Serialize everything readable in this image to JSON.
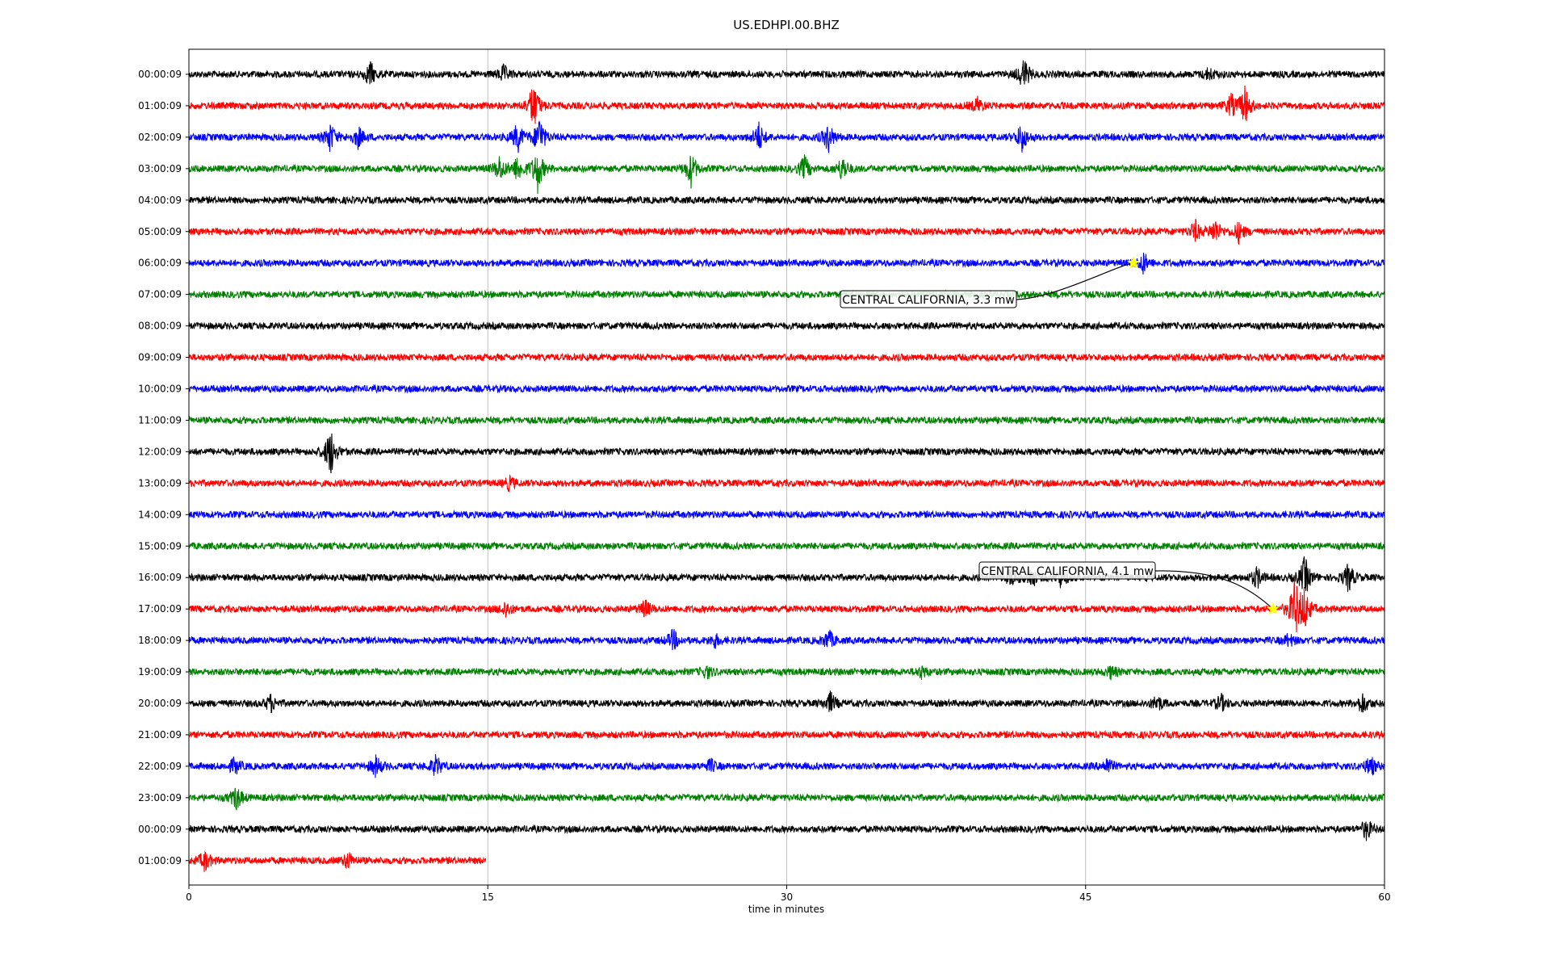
{
  "chart_data": {
    "type": "line",
    "title": "US.EDHPI.00.BHZ",
    "xlabel": "time in minutes",
    "xlim": [
      0,
      60
    ],
    "x_ticks": [
      0,
      15,
      30,
      45,
      60
    ],
    "grid_x": true,
    "trace_colors": [
      "#000000",
      "#ff0000",
      "#0000ff",
      "#008000"
    ],
    "rows": [
      "00:00:09",
      "01:00:09",
      "02:00:09",
      "03:00:09",
      "04:00:09",
      "05:00:09",
      "06:00:09",
      "07:00:09",
      "08:00:09",
      "09:00:09",
      "10:00:09",
      "11:00:09",
      "12:00:09",
      "13:00:09",
      "14:00:09",
      "15:00:09",
      "16:00:09",
      "17:00:09",
      "18:00:09",
      "19:00:09",
      "20:00:09",
      "21:00:09",
      "22:00:09",
      "23:00:09",
      "00:00:09",
      "01:00:09"
    ],
    "last_row_end_minute": 14.9,
    "events": [
      {
        "row": 6,
        "minute": 47.4,
        "label": "CENTRAL CALIFORNIA, 3.3 mw",
        "marker_color": "#ffff00"
      },
      {
        "row": 17,
        "minute": 54.4,
        "label": "CENTRAL CALIFORNIA, 4.1 mw",
        "marker_color": "#ffff00"
      }
    ],
    "bursts": [
      {
        "row": 0,
        "minute": 9.1,
        "amp": 0.6
      },
      {
        "row": 0,
        "minute": 15.8,
        "amp": 0.4
      },
      {
        "row": 0,
        "minute": 41.9,
        "amp": 0.8
      },
      {
        "row": 0,
        "minute": 51.2,
        "amp": 0.3
      },
      {
        "row": 1,
        "minute": 17.3,
        "amp": 1.2
      },
      {
        "row": 1,
        "minute": 39.6,
        "amp": 0.4
      },
      {
        "row": 1,
        "minute": 52.3,
        "amp": 0.5
      },
      {
        "row": 1,
        "minute": 53.0,
        "amp": 0.9
      },
      {
        "row": 2,
        "minute": 7.1,
        "amp": 0.7
      },
      {
        "row": 2,
        "minute": 8.5,
        "amp": 0.5
      },
      {
        "row": 2,
        "minute": 16.5,
        "amp": 0.7
      },
      {
        "row": 2,
        "minute": 17.6,
        "amp": 1.0
      },
      {
        "row": 2,
        "minute": 28.6,
        "amp": 0.7
      },
      {
        "row": 2,
        "minute": 32.1,
        "amp": 0.7
      },
      {
        "row": 2,
        "minute": 41.8,
        "amp": 0.7
      },
      {
        "row": 3,
        "minute": 15.6,
        "amp": 0.6
      },
      {
        "row": 3,
        "minute": 16.5,
        "amp": 0.6
      },
      {
        "row": 3,
        "minute": 17.5,
        "amp": 1.1
      },
      {
        "row": 3,
        "minute": 25.2,
        "amp": 0.8
      },
      {
        "row": 3,
        "minute": 30.9,
        "amp": 0.6
      },
      {
        "row": 3,
        "minute": 32.8,
        "amp": 0.6
      },
      {
        "row": 5,
        "minute": 50.5,
        "amp": 0.5
      },
      {
        "row": 5,
        "minute": 51.5,
        "amp": 0.6
      },
      {
        "row": 5,
        "minute": 52.7,
        "amp": 0.5
      },
      {
        "row": 6,
        "minute": 47.9,
        "amp": 0.5
      },
      {
        "row": 12,
        "minute": 7.1,
        "amp": 1.2
      },
      {
        "row": 13,
        "minute": 16.1,
        "amp": 0.3
      },
      {
        "row": 16,
        "minute": 41.3,
        "amp": 0.5
      },
      {
        "row": 16,
        "minute": 42.3,
        "amp": 0.5
      },
      {
        "row": 16,
        "minute": 43.8,
        "amp": 0.5
      },
      {
        "row": 16,
        "minute": 53.6,
        "amp": 0.5
      },
      {
        "row": 16,
        "minute": 56.0,
        "amp": 1.0
      },
      {
        "row": 16,
        "minute": 58.2,
        "amp": 0.7
      },
      {
        "row": 17,
        "minute": 15.9,
        "amp": 0.4
      },
      {
        "row": 17,
        "minute": 22.9,
        "amp": 0.4
      },
      {
        "row": 17,
        "minute": 55.5,
        "amp": 1.4
      },
      {
        "row": 17,
        "minute": 56.0,
        "amp": 1.0
      },
      {
        "row": 18,
        "minute": 24.3,
        "amp": 0.5
      },
      {
        "row": 18,
        "minute": 26.4,
        "amp": 0.3
      },
      {
        "row": 18,
        "minute": 32.1,
        "amp": 0.5
      },
      {
        "row": 18,
        "minute": 55.2,
        "amp": 0.3
      },
      {
        "row": 19,
        "minute": 26.0,
        "amp": 0.3
      },
      {
        "row": 19,
        "minute": 36.8,
        "amp": 0.3
      },
      {
        "row": 19,
        "minute": 46.3,
        "amp": 0.3
      },
      {
        "row": 20,
        "minute": 4.1,
        "amp": 0.4
      },
      {
        "row": 20,
        "minute": 32.2,
        "amp": 0.5
      },
      {
        "row": 20,
        "minute": 48.6,
        "amp": 0.4
      },
      {
        "row": 20,
        "minute": 51.8,
        "amp": 0.4
      },
      {
        "row": 20,
        "minute": 58.9,
        "amp": 0.5
      },
      {
        "row": 22,
        "minute": 2.3,
        "amp": 0.4
      },
      {
        "row": 22,
        "minute": 9.4,
        "amp": 0.5
      },
      {
        "row": 22,
        "minute": 12.4,
        "amp": 0.5
      },
      {
        "row": 22,
        "minute": 26.2,
        "amp": 0.3
      },
      {
        "row": 22,
        "minute": 46.1,
        "amp": 0.4
      },
      {
        "row": 22,
        "minute": 59.3,
        "amp": 0.5
      },
      {
        "row": 23,
        "minute": 2.4,
        "amp": 0.6
      },
      {
        "row": 24,
        "minute": 59.1,
        "amp": 0.5
      },
      {
        "row": 25,
        "minute": 0.8,
        "amp": 0.5
      },
      {
        "row": 25,
        "minute": 8.0,
        "amp": 0.4
      }
    ]
  }
}
